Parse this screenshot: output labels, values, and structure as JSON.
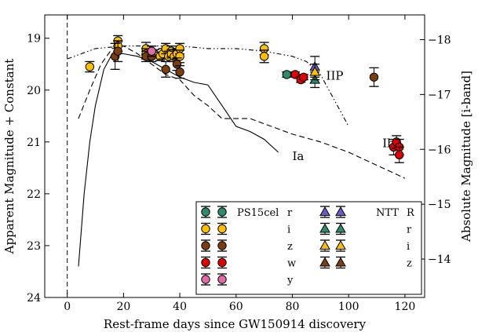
{
  "chart_data": {
    "type": "scatter",
    "xlabel": "Rest-frame days since GW150914 discovery",
    "ylabel": "Apparent Magnitude + Constant",
    "y2label": "Absolute Magnitude [i-band]",
    "xlim": [
      -8,
      127
    ],
    "ylim": [
      24,
      18.55
    ],
    "y2lim": [
      -13.3,
      -18.45
    ],
    "x_ticks": [
      0,
      20,
      40,
      60,
      80,
      100,
      120
    ],
    "y_ticks": [
      19,
      20,
      21,
      22,
      23,
      24
    ],
    "y2_ticks": [
      -14,
      -15,
      -16,
      -17,
      -18
    ],
    "x_tick_labels": [
      "0",
      "20",
      "40",
      "60",
      "80",
      "100",
      "120"
    ],
    "y_tick_labels": [
      "19",
      "20",
      "21",
      "22",
      "23",
      "24"
    ],
    "y2_tick_labels": [
      "−14",
      "−15",
      "−16",
      "−17",
      "−18"
    ],
    "discovery_line_x": 0,
    "grid": false,
    "legend_position": "lower-right",
    "colors": {
      "r": "#2e8b6b",
      "i": "#ffbf00",
      "z": "#7a3e10",
      "w": "#e00000",
      "y": "#e06ca8",
      "ntt_R": "#6a5acd"
    },
    "template_curves": [
      {
        "name": "Ia",
        "style": "solid",
        "label_at": [
          80,
          21.35
        ],
        "points": [
          [
            4,
            23.4
          ],
          [
            6,
            22
          ],
          [
            8,
            21
          ],
          [
            10,
            20.3
          ],
          [
            13,
            19.6
          ],
          [
            16,
            19.3
          ],
          [
            20,
            19.3
          ],
          [
            25,
            19.35
          ],
          [
            30,
            19.45
          ],
          [
            35,
            19.6
          ],
          [
            40,
            19.75
          ],
          [
            45,
            19.85
          ],
          [
            50,
            19.9
          ],
          [
            55,
            20.3
          ],
          [
            60,
            20.7
          ],
          [
            65,
            20.8
          ],
          [
            70,
            20.95
          ],
          [
            75,
            21.2
          ]
        ]
      },
      {
        "name": "Ib",
        "style": "dashed",
        "label_at": [
          112,
          21.1
        ],
        "points": [
          [
            4,
            20.55
          ],
          [
            8,
            20
          ],
          [
            12,
            19.5
          ],
          [
            16,
            19.2
          ],
          [
            20,
            19.15
          ],
          [
            25,
            19.3
          ],
          [
            30,
            19.5
          ],
          [
            35,
            19.7
          ],
          [
            40,
            19.8
          ],
          [
            45,
            20.1
          ],
          [
            50,
            20.3
          ],
          [
            55,
            20.55
          ],
          [
            60,
            20.55
          ],
          [
            65,
            20.55
          ],
          [
            70,
            20.65
          ],
          [
            80,
            20.85
          ],
          [
            90,
            21
          ],
          [
            100,
            21.2
          ],
          [
            110,
            21.45
          ],
          [
            120,
            21.7
          ]
        ]
      },
      {
        "name": "IIP",
        "style": "dashdot",
        "label_at": [
          92,
          19.8
        ],
        "points": [
          [
            0,
            19.4
          ],
          [
            10,
            19.2
          ],
          [
            20,
            19.15
          ],
          [
            30,
            19.15
          ],
          [
            40,
            19.15
          ],
          [
            50,
            19.2
          ],
          [
            60,
            19.2
          ],
          [
            70,
            19.25
          ],
          [
            80,
            19.35
          ],
          [
            85,
            19.45
          ],
          [
            90,
            19.7
          ],
          [
            95,
            20.2
          ],
          [
            100,
            20.7
          ]
        ]
      }
    ],
    "series": [
      {
        "name": "r",
        "marker": "circle",
        "color": "#2e8b6b",
        "instrument": "PS15cel",
        "points": [
          [
            78,
            19.7,
            0.05
          ]
        ]
      },
      {
        "name": "i",
        "marker": "circle",
        "color": "#ffbf00",
        "instrument": "PS15cel",
        "points": [
          [
            8,
            19.55,
            0.1
          ],
          [
            18,
            19.05,
            0.1
          ],
          [
            18,
            19.15,
            0.1
          ],
          [
            28,
            19.2,
            0.12
          ],
          [
            28,
            19.3,
            0.1
          ],
          [
            30,
            19.25,
            0.1
          ],
          [
            31,
            19.3,
            0.08
          ],
          [
            33,
            19.35,
            0.08
          ],
          [
            34,
            19.3,
            0.1
          ],
          [
            35,
            19.2,
            0.1
          ],
          [
            36,
            19.35,
            0.1
          ],
          [
            37,
            19.25,
            0.1
          ],
          [
            37,
            19.3,
            0.08
          ],
          [
            38,
            19.35,
            0.1
          ],
          [
            39,
            19.3,
            0.1
          ],
          [
            40,
            19.2,
            0.1
          ],
          [
            40,
            19.35,
            0.12
          ],
          [
            70,
            19.2,
            0.12
          ],
          [
            70,
            19.35,
            0.12
          ]
        ]
      },
      {
        "name": "z",
        "marker": "circle",
        "color": "#7a3e10",
        "instrument": "PS15cel",
        "points": [
          [
            17,
            19.35,
            0.25
          ],
          [
            18,
            19.25,
            0.2
          ],
          [
            28,
            19.35,
            0.1
          ],
          [
            30,
            19.35,
            0.1
          ],
          [
            35,
            19.6,
            0.15
          ],
          [
            39,
            19.5,
            0.12
          ],
          [
            40,
            19.65,
            0.12
          ],
          [
            109,
            19.75,
            0.18
          ]
        ]
      },
      {
        "name": "w",
        "marker": "circle",
        "color": "#e00000",
        "instrument": "PS15cel",
        "points": [
          [
            81,
            19.7,
            0.05
          ],
          [
            83,
            19.8,
            0.05
          ],
          [
            84,
            19.75,
            0.05
          ],
          [
            116,
            21.1,
            0.15
          ],
          [
            117,
            21.0,
            0.12
          ],
          [
            118,
            21.1,
            0.15
          ],
          [
            118,
            21.25,
            0.15
          ]
        ]
      },
      {
        "name": "y",
        "marker": "circle",
        "color": "#e06ca8",
        "instrument": "PS15cel",
        "points": [
          [
            30,
            19.25,
            0.1
          ]
        ]
      },
      {
        "name": "R",
        "marker": "triangle",
        "color": "#6a5acd",
        "instrument": "NTT",
        "points": [
          [
            88,
            19.55,
            0.2
          ]
        ]
      },
      {
        "name": "r",
        "marker": "triangle",
        "color": "#2e8b6b",
        "instrument": "NTT",
        "points": [
          [
            88,
            19.8,
            0.15
          ]
        ]
      },
      {
        "name": "i",
        "marker": "triangle",
        "color": "#ffbf00",
        "instrument": "NTT",
        "points": [
          [
            88,
            19.65,
            0.15
          ]
        ]
      },
      {
        "name": "z",
        "marker": "triangle",
        "color": "#7a3e10",
        "instrument": "NTT",
        "points": []
      }
    ],
    "legend": {
      "ps_title": "PS15cel",
      "ntt_title": "NTT",
      "ps_entries": [
        {
          "label": "r",
          "color": "#2e8b6b"
        },
        {
          "label": "i",
          "color": "#ffbf00"
        },
        {
          "label": "z",
          "color": "#7a3e10"
        },
        {
          "label": "w",
          "color": "#e00000"
        },
        {
          "label": "y",
          "color": "#e06ca8"
        }
      ],
      "ntt_entries": [
        {
          "label": "R",
          "color": "#6a5acd"
        },
        {
          "label": "r",
          "color": "#2e8b6b"
        },
        {
          "label": "i",
          "color": "#ffbf00"
        },
        {
          "label": "z",
          "color": "#7a3e10"
        }
      ]
    }
  }
}
